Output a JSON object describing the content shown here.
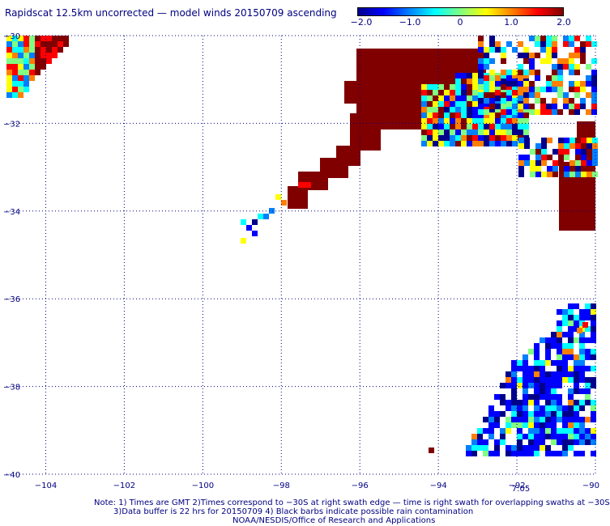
{
  "title": "Rapidscat 12.5km uncorrected — model winds 20150709 ascending",
  "colorbar": {
    "ticks": [
      "−2.0",
      "−1.0",
      "0",
      "1.0",
      "2.0"
    ],
    "range": [
      -2.0,
      2.0
    ],
    "colors": [
      "#00008b",
      "#0000ff",
      "#0080ff",
      "#00ffff",
      "#80ff80",
      "#ffff00",
      "#ff8000",
      "#ff0000",
      "#800000"
    ]
  },
  "map": {
    "lon_labels": [
      "−104",
      "−102",
      "−100",
      "−98",
      "−96",
      "−94",
      "−92",
      "−90"
    ],
    "lat_labels": [
      "−30",
      "−32",
      "−34",
      "−36",
      "−38",
      "−40"
    ],
    "lon_values": [
      -104,
      -102,
      -100,
      -98,
      -96,
      -94,
      -92,
      -90
    ],
    "lat_values": [
      -30,
      -32,
      -34,
      -36,
      -38,
      -40
    ],
    "lon_range": [
      -105,
      -90
    ],
    "lat_range": [
      -40,
      -30
    ],
    "time_label": "7:05",
    "time_label_color": "#800000",
    "swath_color_land": "#800000",
    "grid": true
  },
  "notes": {
    "line1": "Note: 1) Times are GMT 2)Times correspond to −30S at right swath edge — time is right swath for overlapping swaths at −30S",
    "line2": "3)Data buffer is 22 hrs for 20150709 4) Black barbs indicate possible rain contamination",
    "line3": "NOAA/NESDIS/Office of Research and Applications"
  }
}
